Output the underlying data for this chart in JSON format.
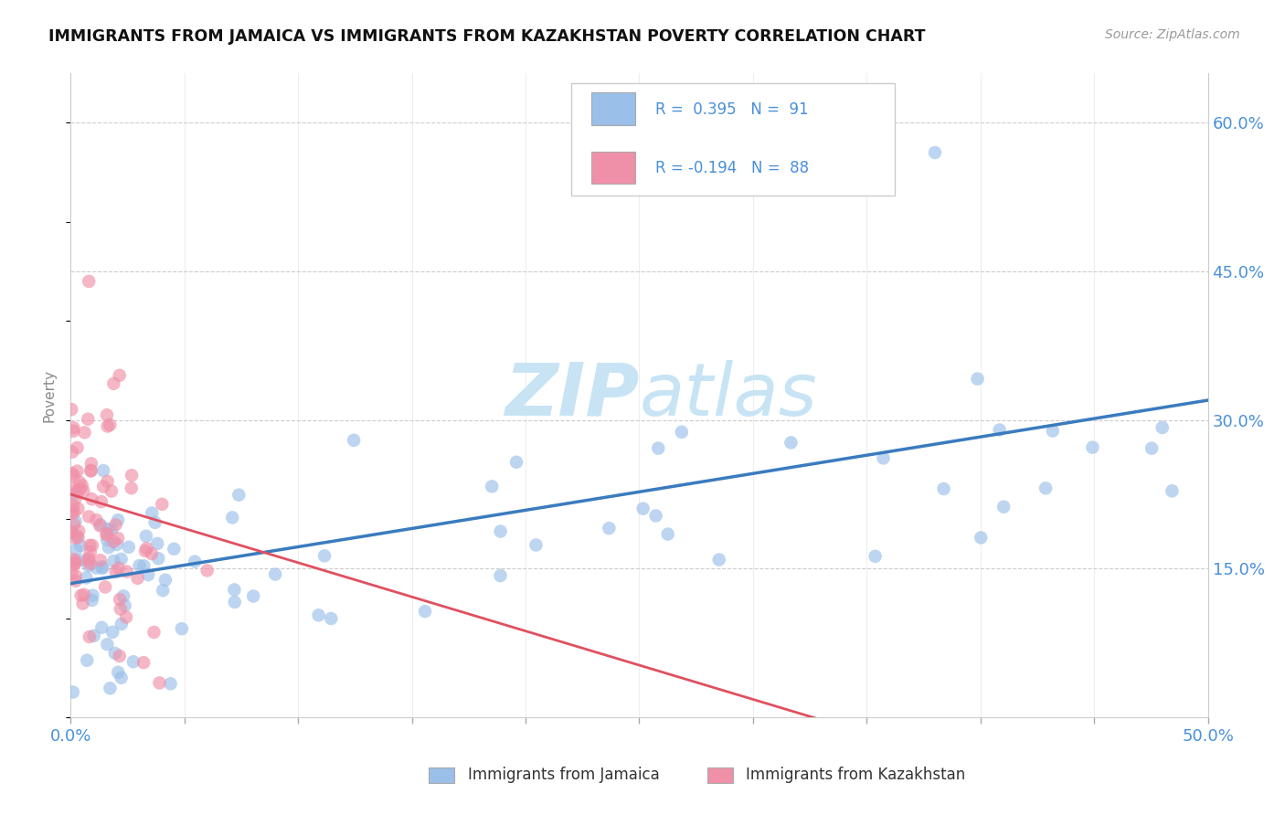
{
  "title": "IMMIGRANTS FROM JAMAICA VS IMMIGRANTS FROM KAZAKHSTAN POVERTY CORRELATION CHART",
  "source_text": "Source: ZipAtlas.com",
  "ylabel": "Poverty",
  "xlim": [
    0,
    0.5
  ],
  "ylim": [
    0,
    0.65
  ],
  "yticks_right": [
    0.15,
    0.3,
    0.45,
    0.6
  ],
  "ytick_right_labels": [
    "15.0%",
    "30.0%",
    "45.0%",
    "60.0%"
  ],
  "color_jamaica": "#9abfe8",
  "color_kazakhstan": "#f090a8",
  "trendline_jamaica_color": "#3a7bbf",
  "trendline_kazakhstan_color": "#e05060",
  "watermark_zip": "ZIP",
  "watermark_atlas": "atlas",
  "watermark_color": "#c8e4f4",
  "background_color": "#ffffff",
  "grid_color": "#cccccc",
  "title_color": "#111111",
  "tick_label_color": "#4a90d9",
  "legend_text_color": "#4a90d9",
  "legend_label_color": "#333333",
  "ylabel_color": "#888888",
  "jamaica_legend": "R =  0.395   N =  91",
  "kazakhstan_legend": "R = -0.194   N =  88",
  "bottom_legend_jamaica": "Immigrants from Jamaica",
  "bottom_legend_kazakhstan": "Immigrants from Kazakhstan"
}
